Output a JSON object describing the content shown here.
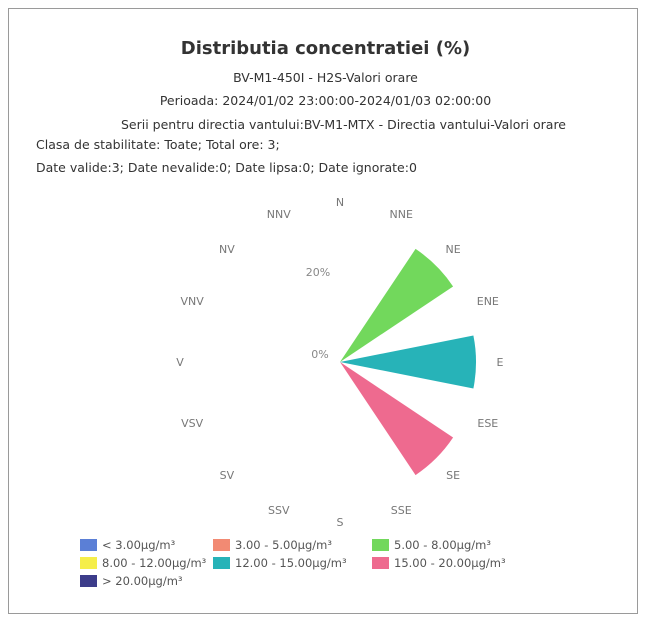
{
  "header": {
    "title": "Distributia concentratiei (%)",
    "subtitle": "BV-M1-450I - H2S-Valori orare",
    "period": "Perioada: 2024/01/02 23:00:00-2024/01/03 02:00:00",
    "series_info": "Serii pentru directia vantului:BV-M1-MTX - Directia vantului-Valori orare",
    "stability": "Clasa de stabilitate: Toate; Total ore: 3;",
    "validity": "Date valide:3; Date nevalide:0; Date lipsa:0; Date ignorate:0"
  },
  "chart_data": {
    "type": "wind-rose",
    "unit": "%",
    "directions": [
      "N",
      "NNE",
      "NE",
      "ENE",
      "E",
      "ESE",
      "SE",
      "SSE",
      "S",
      "SSV",
      "SV",
      "VSV",
      "V",
      "VNV",
      "NV",
      "NNV"
    ],
    "ring_labels": [
      "0%",
      "20%"
    ],
    "rmax": 33.3,
    "sectors": [
      {
        "direction": "NE",
        "value": 33.3,
        "class": "5.00 - 8.00µg/m³"
      },
      {
        "direction": "E",
        "value": 33.3,
        "class": "12.00 - 15.00µg/m³"
      },
      {
        "direction": "SE",
        "value": 33.3,
        "class": "15.00 - 20.00µg/m³"
      }
    ],
    "legend": [
      {
        "label": "< 3.00µg/m³",
        "color": "#5b7fd6"
      },
      {
        "label": "3.00 - 5.00µg/m³",
        "color": "#f28a73"
      },
      {
        "label": "5.00 - 8.00µg/m³",
        "color": "#72d85c"
      },
      {
        "label": "8.00 - 12.00µg/m³",
        "color": "#f5ee4a"
      },
      {
        "label": "12.00 - 15.00µg/m³",
        "color": "#27b3b8"
      },
      {
        "label": "15.00 - 20.00µg/m³",
        "color": "#ee6a8f"
      },
      {
        "label": "> 20.00µg/m³",
        "color": "#3c3c8a"
      }
    ]
  }
}
